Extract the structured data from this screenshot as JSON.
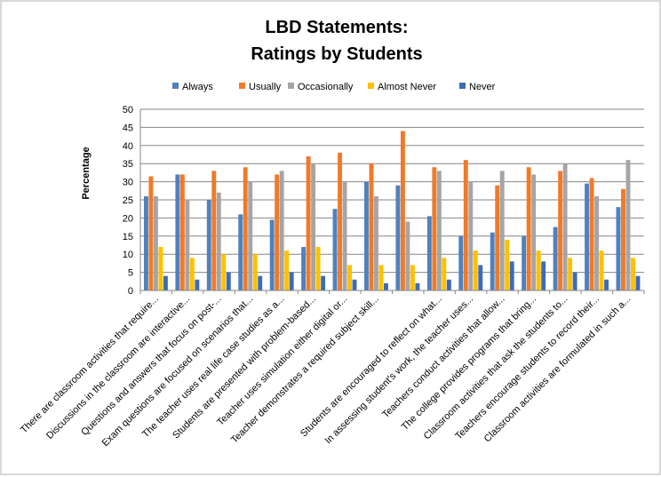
{
  "chart_data": {
    "type": "bar",
    "title": [
      "LBD Statements:",
      "Ratings by Students"
    ],
    "xlabel": "",
    "ylabel": "Percentage",
    "ylim": [
      0,
      50
    ],
    "yticks": [
      0,
      5,
      10,
      15,
      20,
      25,
      30,
      35,
      40,
      45,
      50
    ],
    "grid": true,
    "legend_position": "top",
    "categories": [
      "There are classroom activities that require...",
      "Discussions in the classroom are interactive...",
      "Questions and answers that focus on post-...",
      "Exam questions are focused on scenarios that...",
      "The teacher uses real life case studies as a...",
      "Students are presented with problem-based...",
      "Teacher uses simulation either digital or...",
      "Teacher demonstrates a required subject skill...",
      "",
      "Students are encouraged to reflect on what...",
      "In assessing student's work, the teacher uses...",
      "Teachers conduct activities that allow...",
      "The college provides programs that bring...",
      "Classroom activities that ask the students to...",
      "Teachers encourage students to record their...",
      "Classroom activities are formulated in such a..."
    ],
    "series": [
      {
        "name": "Always",
        "color": "#4f81bd",
        "values": [
          26,
          32,
          25,
          21,
          19.5,
          12,
          22.5,
          30,
          29,
          20.5,
          15,
          16,
          15,
          17.5,
          29.5,
          23
        ]
      },
      {
        "name": "Usually",
        "color": "#f07a2a",
        "values": [
          31.5,
          32,
          33,
          34,
          32,
          37,
          38,
          35,
          44,
          34,
          36,
          29,
          34,
          33,
          31,
          28
        ]
      },
      {
        "name": "Occasionally",
        "color": "#a5a5a5",
        "values": [
          26,
          25,
          27,
          30,
          33,
          35,
          30,
          26,
          19,
          33,
          30,
          33,
          32,
          35,
          26,
          36
        ]
      },
      {
        "name": "Almost Never",
        "color": "#ffc000",
        "values": [
          12,
          9,
          10,
          10,
          11,
          12,
          7,
          7,
          7,
          9,
          11,
          14,
          11,
          9,
          11,
          9
        ]
      },
      {
        "name": "Never",
        "color": "#3d6bb8",
        "values": [
          4,
          3,
          5,
          4,
          5,
          4,
          3,
          2,
          2,
          3,
          7,
          8,
          8,
          5,
          3,
          4
        ]
      }
    ]
  }
}
